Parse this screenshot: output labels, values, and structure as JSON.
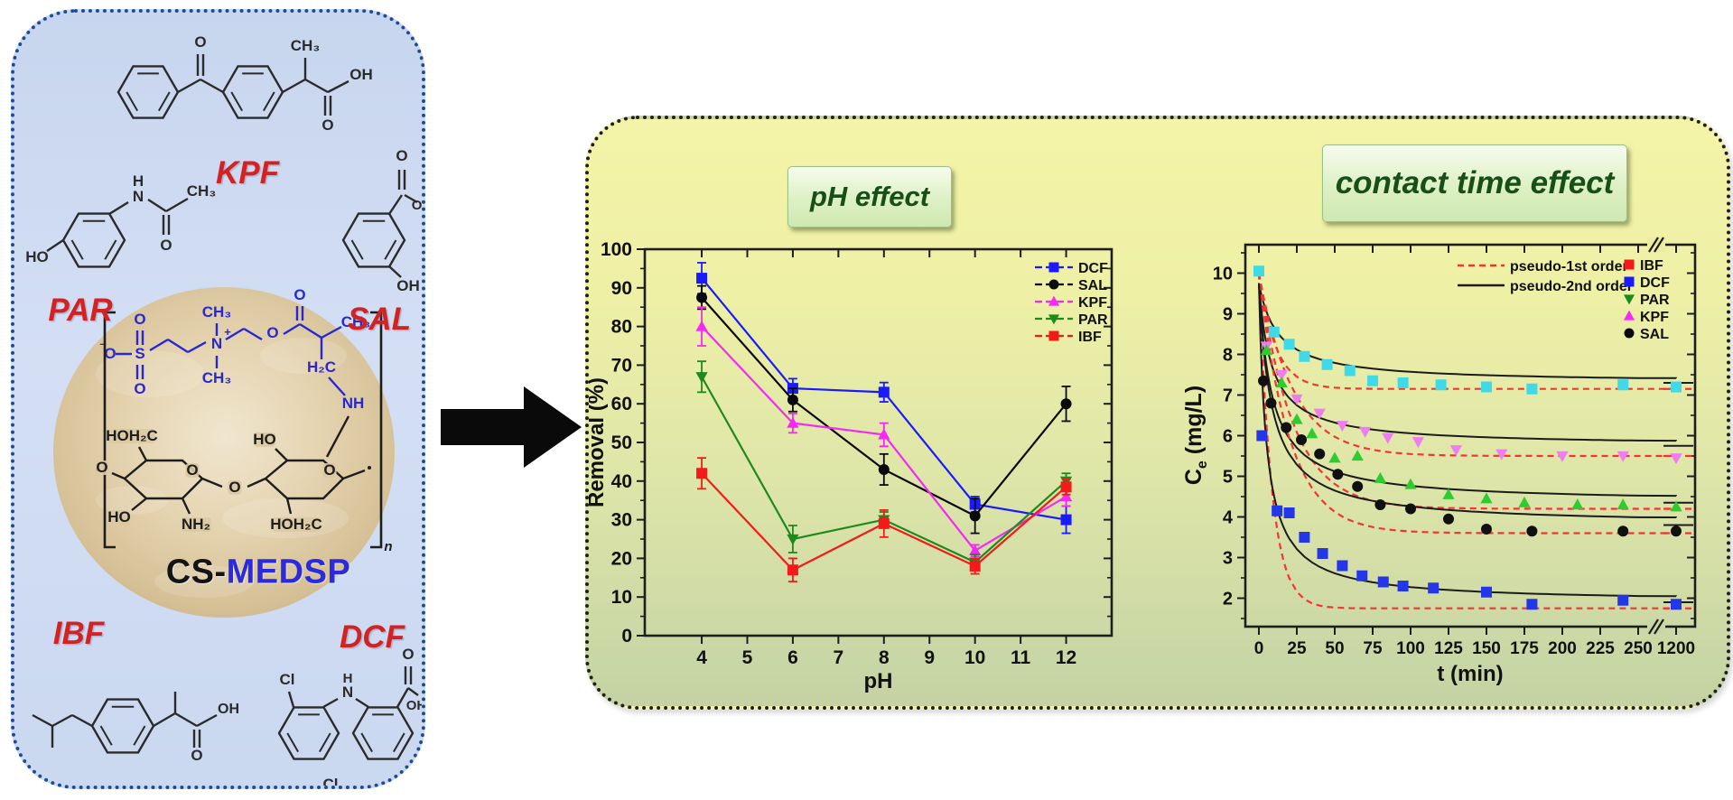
{
  "titles": {
    "ph": "pH effect",
    "contact": "contact time effect"
  },
  "left_panel": {
    "molecules": {
      "kpf": {
        "label": "KPF",
        "atoms": {
          "o1": "O",
          "ch3": "CH₃",
          "o2": "O",
          "oh": "OH"
        }
      },
      "par": {
        "label": "PAR",
        "atoms": {
          "h": "H",
          "n": "N",
          "o": "O",
          "ch3": "CH₃",
          "ho": "HO"
        }
      },
      "sal": {
        "label": "SAL",
        "atoms": {
          "o": "O",
          "oh1": "OH",
          "oh2": "OH"
        }
      },
      "ibf": {
        "label": "IBF",
        "atoms": {
          "o": "O",
          "oh": "OH"
        }
      },
      "dcf": {
        "label": "DCF",
        "atoms": {
          "cl1": "Cl",
          "h": "H",
          "n": "N",
          "cl2": "Cl",
          "o": "O",
          "oh": "OH"
        }
      }
    },
    "material": {
      "label_black": "CS-",
      "label_blue": "MEDSP",
      "polymer_atoms": {
        "charge": "–",
        "o_left": "O",
        "s": "S",
        "o_up": "O",
        "o_down": "O",
        "ch3_up": "CH₃",
        "n": "N",
        "plus": "+",
        "ch3_down": "CH₃",
        "o_mid": "O",
        "o_carbonyl": "O",
        "ch3_right": "CH₃",
        "h2c": "H₂C",
        "nh": "NH"
      },
      "chitosan_atoms": {
        "o_term": "O",
        "hoh2c_1": "HOH₂C",
        "ho_1": "HO",
        "nh2": "NH₂",
        "o_ring1": "O",
        "o_bridge": "O",
        "ho_2": "HO",
        "hoh2c_2": "HOH₂C",
        "o_ring2": "O",
        "n_sub": "n"
      }
    }
  },
  "chart_data": [
    {
      "type": "line",
      "title": "pH effect",
      "xlabel": "pH",
      "ylabel": "Removal (%)",
      "xlim": [
        2.75,
        13
      ],
      "ylim": [
        0,
        100
      ],
      "xticks": [
        4,
        5,
        6,
        7,
        8,
        9,
        10,
        11,
        12
      ],
      "yticks": [
        0,
        10,
        20,
        30,
        40,
        50,
        60,
        70,
        80,
        90,
        100
      ],
      "grid": false,
      "legend_position": "top-right",
      "x": [
        4,
        6,
        8,
        10,
        12
      ],
      "series": [
        {
          "name": "DCF",
          "color": "#1a1aff",
          "marker": "square",
          "values": [
            92.5,
            64,
            63,
            34,
            30
          ],
          "err": [
            4,
            2.5,
            2.5,
            2,
            3.5
          ]
        },
        {
          "name": "SAL",
          "color": "#0a0a0a",
          "marker": "circle",
          "values": [
            87.5,
            61,
            43,
            31,
            60
          ],
          "err": [
            3,
            3,
            4,
            4.5,
            4.5
          ]
        },
        {
          "name": "KPF",
          "color": "#f42af4",
          "marker": "triangle-up",
          "values": [
            80,
            55,
            52,
            22,
            36
          ],
          "err": [
            5,
            2.5,
            3,
            1.5,
            2.5
          ]
        },
        {
          "name": "PAR",
          "color": "#1e8a1e",
          "marker": "triangle-down",
          "values": [
            67,
            25,
            30,
            19,
            40
          ],
          "err": [
            4,
            3.5,
            2,
            2,
            2
          ]
        },
        {
          "name": "IBF",
          "color": "#f41a1a",
          "marker": "square",
          "values": [
            42,
            17,
            29,
            18,
            38.5
          ],
          "err": [
            4,
            3,
            3.5,
            2,
            2
          ]
        }
      ]
    },
    {
      "type": "scatter",
      "title": "contact time effect",
      "xlabel": "t (min)",
      "ylabel": "Ce (mg/L)",
      "ylabel_parts": {
        "base": "C",
        "sub": "e",
        "unit": " (mg/L)"
      },
      "xticks": [
        0,
        25,
        50,
        75,
        100,
        125,
        150,
        175,
        200,
        225,
        250,
        1200
      ],
      "yticks": [
        2,
        3,
        4,
        5,
        6,
        7,
        8,
        9,
        10
      ],
      "ylim": [
        1.3,
        10.7
      ],
      "axis_break_after": 250,
      "c0": 10,
      "fit_legend": [
        {
          "label": "pseudo-1st order",
          "style": "dashed",
          "color": "#f23535"
        },
        {
          "label": "pseudo-2nd order",
          "style": "solid",
          "color": "#1b1b1b"
        }
      ],
      "series": [
        {
          "name": "IBF",
          "marker": "square",
          "marker_color": "#3fd9e8",
          "legend_color": "#f41a1a",
          "points": [
            [
              0,
              10.05
            ],
            [
              10,
              8.55
            ],
            [
              20,
              8.25
            ],
            [
              30,
              7.95
            ],
            [
              45,
              7.75
            ],
            [
              60,
              7.6
            ],
            [
              75,
              7.35
            ],
            [
              95,
              7.3
            ],
            [
              120,
              7.25
            ],
            [
              150,
              7.2
            ],
            [
              180,
              7.15
            ],
            [
              240,
              7.25
            ],
            [
              1200,
              7.2
            ]
          ],
          "fit1": {
            "ce": 7.15,
            "k": 0.09
          },
          "fit2": {
            "ce": 7.3,
            "b": 0.08
          }
        },
        {
          "name": "DCF",
          "marker": "square",
          "marker_color": "#2336e8",
          "legend_color": "#1a1aff",
          "points": [
            [
              2,
              6.0
            ],
            [
              12,
              4.15
            ],
            [
              20,
              4.1
            ],
            [
              30,
              3.5
            ],
            [
              42,
              3.1
            ],
            [
              55,
              2.8
            ],
            [
              68,
              2.55
            ],
            [
              82,
              2.4
            ],
            [
              95,
              2.3
            ],
            [
              115,
              2.25
            ],
            [
              150,
              2.15
            ],
            [
              180,
              1.85
            ],
            [
              240,
              1.95
            ],
            [
              1200,
              1.85
            ]
          ],
          "fit1": {
            "ce": 1.75,
            "k": 0.12
          },
          "fit2": {
            "ce": 1.9,
            "b": 0.2
          }
        },
        {
          "name": "PAR",
          "marker": "triangle-down",
          "marker_color": "#ee7ef0",
          "legend_color": "#1e8a1e",
          "points": [
            [
              5,
              8.2
            ],
            [
              15,
              7.5
            ],
            [
              25,
              6.9
            ],
            [
              40,
              6.55
            ],
            [
              55,
              6.25
            ],
            [
              70,
              6.1
            ],
            [
              85,
              5.95
            ],
            [
              105,
              5.85
            ],
            [
              130,
              5.65
            ],
            [
              160,
              5.55
            ],
            [
              200,
              5.5
            ],
            [
              240,
              5.5
            ],
            [
              1200,
              5.45
            ]
          ],
          "fit1": {
            "ce": 5.5,
            "k": 0.045
          },
          "fit2": {
            "ce": 5.75,
            "b": 0.12
          }
        },
        {
          "name": "KPF",
          "marker": "triangle-up",
          "marker_color": "#2ecc2e",
          "legend_color": "#f42af4",
          "points": [
            [
              5,
              8.1
            ],
            [
              15,
              7.3
            ],
            [
              25,
              6.4
            ],
            [
              35,
              6.05
            ],
            [
              50,
              5.45
            ],
            [
              65,
              5.5
            ],
            [
              80,
              4.95
            ],
            [
              100,
              4.8
            ],
            [
              125,
              4.55
            ],
            [
              150,
              4.45
            ],
            [
              175,
              4.35
            ],
            [
              210,
              4.3
            ],
            [
              240,
              4.3
            ],
            [
              1200,
              4.25
            ]
          ],
          "fit1": {
            "ce": 4.2,
            "k": 0.045
          },
          "fit2": {
            "ce": 4.35,
            "b": 0.12
          }
        },
        {
          "name": "SAL",
          "marker": "circle",
          "marker_color": "#101010",
          "legend_color": "#0a0a0a",
          "points": [
            [
              3,
              7.35
            ],
            [
              8,
              6.8
            ],
            [
              18,
              6.2
            ],
            [
              28,
              5.9
            ],
            [
              40,
              5.55
            ],
            [
              52,
              5.05
            ],
            [
              65,
              4.75
            ],
            [
              80,
              4.3
            ],
            [
              100,
              4.2
            ],
            [
              125,
              3.95
            ],
            [
              150,
              3.7
            ],
            [
              180,
              3.65
            ],
            [
              240,
              3.65
            ],
            [
              1200,
              3.65
            ]
          ],
          "fit1": {
            "ce": 3.6,
            "k": 0.05
          },
          "fit2": {
            "ce": 3.8,
            "b": 0.12
          }
        }
      ]
    }
  ],
  "colors": {
    "label_red": "#d42121",
    "medsp_blue": "#2a2ae0",
    "title_green": "#174f17",
    "panel_left_border": "#1c4b9b",
    "panel_right_border": "#1f1f1f",
    "fit1_red": "#f23535",
    "fit2_black": "#1b1b1b"
  }
}
